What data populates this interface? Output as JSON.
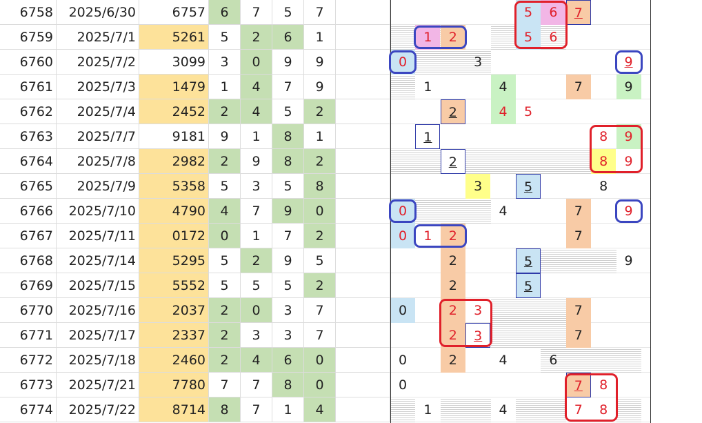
{
  "colors": {
    "yellow": "#fde29a",
    "green": "#c5dfb3",
    "orange": "#f8cba6",
    "lightblue": "#c9e4f4",
    "pink": "#f2b6e6",
    "brightyellow": "#ffff8a",
    "lightgreen": "#c9f2c3",
    "redtext": "#e0202a",
    "ringred": "#e0202a",
    "ringblue": "#3b46c0",
    "boxblue": "#2f3aa8"
  },
  "rows": [
    {
      "id": "6758",
      "date": "2025/6/30",
      "num": "6757",
      "num_hl": false,
      "digits": [
        "6",
        "7",
        "5",
        "7"
      ],
      "dhl": [
        true,
        false,
        false,
        false
      ]
    },
    {
      "id": "6759",
      "date": "2025/7/1",
      "num": "5261",
      "num_hl": true,
      "digits": [
        "5",
        "2",
        "6",
        "1"
      ],
      "dhl": [
        false,
        true,
        true,
        false
      ]
    },
    {
      "id": "6760",
      "date": "2025/7/2",
      "num": "3099",
      "num_hl": false,
      "digits": [
        "3",
        "0",
        "9",
        "9"
      ],
      "dhl": [
        false,
        true,
        false,
        false
      ]
    },
    {
      "id": "6761",
      "date": "2025/7/3",
      "num": "1479",
      "num_hl": true,
      "digits": [
        "1",
        "4",
        "7",
        "9"
      ],
      "dhl": [
        false,
        true,
        false,
        false
      ]
    },
    {
      "id": "6762",
      "date": "2025/7/4",
      "num": "2452",
      "num_hl": true,
      "digits": [
        "2",
        "4",
        "5",
        "2"
      ],
      "dhl": [
        true,
        true,
        false,
        true
      ]
    },
    {
      "id": "6763",
      "date": "2025/7/7",
      "num": "9181",
      "num_hl": false,
      "digits": [
        "9",
        "1",
        "8",
        "1"
      ],
      "dhl": [
        false,
        false,
        true,
        false
      ]
    },
    {
      "id": "6764",
      "date": "2025/7/8",
      "num": "2982",
      "num_hl": true,
      "digits": [
        "2",
        "9",
        "8",
        "2"
      ],
      "dhl": [
        true,
        false,
        true,
        true
      ]
    },
    {
      "id": "6765",
      "date": "2025/7/9",
      "num": "5358",
      "num_hl": true,
      "digits": [
        "5",
        "3",
        "5",
        "8"
      ],
      "dhl": [
        false,
        false,
        false,
        true
      ]
    },
    {
      "id": "6766",
      "date": "2025/7/10",
      "num": "4790",
      "num_hl": true,
      "digits": [
        "4",
        "7",
        "9",
        "0"
      ],
      "dhl": [
        true,
        false,
        true,
        true
      ]
    },
    {
      "id": "6767",
      "date": "2025/7/11",
      "num": "0172",
      "num_hl": true,
      "digits": [
        "0",
        "1",
        "7",
        "2"
      ],
      "dhl": [
        true,
        false,
        false,
        true
      ]
    },
    {
      "id": "6768",
      "date": "2025/7/14",
      "num": "5295",
      "num_hl": true,
      "digits": [
        "5",
        "2",
        "9",
        "5"
      ],
      "dhl": [
        false,
        true,
        false,
        false
      ]
    },
    {
      "id": "6769",
      "date": "2025/7/15",
      "num": "5552",
      "num_hl": true,
      "digits": [
        "5",
        "5",
        "5",
        "2"
      ],
      "dhl": [
        false,
        false,
        false,
        true
      ]
    },
    {
      "id": "6770",
      "date": "2025/7/16",
      "num": "2037",
      "num_hl": true,
      "digits": [
        "2",
        "0",
        "3",
        "7"
      ],
      "dhl": [
        true,
        true,
        false,
        false
      ]
    },
    {
      "id": "6771",
      "date": "2025/7/17",
      "num": "2337",
      "num_hl": true,
      "digits": [
        "2",
        "3",
        "3",
        "7"
      ],
      "dhl": [
        true,
        false,
        false,
        false
      ]
    },
    {
      "id": "6772",
      "date": "2025/7/18",
      "num": "2460",
      "num_hl": true,
      "digits": [
        "2",
        "4",
        "6",
        "0"
      ],
      "dhl": [
        true,
        true,
        true,
        true
      ]
    },
    {
      "id": "6773",
      "date": "2025/7/21",
      "num": "7780",
      "num_hl": true,
      "digits": [
        "7",
        "7",
        "8",
        "0"
      ],
      "dhl": [
        false,
        false,
        true,
        true
      ]
    },
    {
      "id": "6774",
      "date": "2025/7/22",
      "num": "8714",
      "num_hl": true,
      "digits": [
        "8",
        "7",
        "1",
        "4"
      ],
      "dhl": [
        true,
        false,
        false,
        true
      ]
    }
  ],
  "panel": [
    {
      "stripe": [],
      "cells": [
        {
          "c": 5,
          "t": "5",
          "bg": "lightblue",
          "red": true
        },
        {
          "c": 6,
          "t": "6",
          "bg": "pink",
          "red": true
        },
        {
          "c": 7,
          "t": "7",
          "bg": "orange",
          "red": true,
          "u": true,
          "box": true
        }
      ]
    },
    {
      "stripe": [
        0,
        1,
        4,
        5,
        6
      ],
      "cells": [
        {
          "c": 1,
          "t": "1",
          "bg": "pink",
          "red": true
        },
        {
          "c": 2,
          "t": "2",
          "bg": "orange",
          "red": true
        },
        {
          "c": 5,
          "t": "5",
          "bg": "lightblue",
          "red": true
        },
        {
          "c": 6,
          "t": "6",
          "red": true
        }
      ]
    },
    {
      "stripe": [
        1,
        2,
        3
      ],
      "cells": [
        {
          "c": 0,
          "t": "0",
          "bg": "lightblue",
          "red": true
        },
        {
          "c": 3,
          "t": "3"
        },
        {
          "c": 9,
          "t": "9",
          "red": true,
          "u": true
        }
      ]
    },
    {
      "stripe": [
        0
      ],
      "cells": [
        {
          "c": 1,
          "t": "1"
        },
        {
          "c": 4,
          "t": "4",
          "bg": "lightgreen"
        },
        {
          "c": 7,
          "t": "7",
          "bg": "orange"
        },
        {
          "c": 9,
          "t": "9",
          "bg": "lightgreen"
        }
      ]
    },
    {
      "stripe": [],
      "cells": [
        {
          "c": 2,
          "t": "2",
          "bg": "orange",
          "u": true,
          "box": true
        },
        {
          "c": 4,
          "t": "4",
          "bg": "lightgreen",
          "red": true
        },
        {
          "c": 5,
          "t": "5",
          "red": true
        }
      ]
    },
    {
      "stripe": [],
      "cells": [
        {
          "c": 1,
          "t": "1",
          "u": true,
          "box": true
        },
        {
          "c": 8,
          "t": "8",
          "red": true
        },
        {
          "c": 9,
          "t": "9",
          "bg": "lightgreen",
          "red": true
        }
      ]
    },
    {
      "stripe": [
        0,
        1,
        3,
        4,
        5,
        6,
        7
      ],
      "cells": [
        {
          "c": 2,
          "t": "2",
          "u": true,
          "box": true
        },
        {
          "c": 8,
          "t": "8",
          "bg": "brightyellow",
          "red": true
        },
        {
          "c": 9,
          "t": "9",
          "red": true
        }
      ]
    },
    {
      "stripe": [],
      "cells": [
        {
          "c": 3,
          "t": "3",
          "bg": "brightyellow"
        },
        {
          "c": 5,
          "t": "5",
          "bg": "lightblue",
          "u": true,
          "box": true
        },
        {
          "c": 8,
          "t": "8"
        }
      ]
    },
    {
      "stripe": [
        1,
        2,
        3
      ],
      "cells": [
        {
          "c": 0,
          "t": "0",
          "bg": "lightblue",
          "red": true
        },
        {
          "c": 4,
          "t": "4"
        },
        {
          "c": 7,
          "t": "7",
          "bg": "orange"
        },
        {
          "c": 9,
          "t": "9",
          "red": true
        }
      ]
    },
    {
      "stripe": [],
      "cells": [
        {
          "c": 0,
          "t": "0",
          "bg": "lightblue",
          "red": true
        },
        {
          "c": 1,
          "t": "1",
          "red": true
        },
        {
          "c": 2,
          "t": "2",
          "bg": "orange",
          "red": true
        },
        {
          "c": 7,
          "t": "7",
          "bg": "orange"
        }
      ]
    },
    {
      "stripe": [
        6,
        7,
        8
      ],
      "cells": [
        {
          "c": 2,
          "t": "2",
          "bg": "orange"
        },
        {
          "c": 5,
          "t": "5",
          "bg": "lightblue",
          "u": true,
          "box": true
        },
        {
          "c": 9,
          "t": "9"
        }
      ]
    },
    {
      "stripe": [],
      "cells": [
        {
          "c": 2,
          "t": "2",
          "bg": "orange"
        },
        {
          "c": 5,
          "t": "5",
          "bg": "lightblue",
          "u": true,
          "box": true
        }
      ]
    },
    {
      "stripe": [
        4,
        5,
        6
      ],
      "cells": [
        {
          "c": 0,
          "t": "0",
          "bg": "lightblue"
        },
        {
          "c": 2,
          "t": "2",
          "bg": "orange",
          "red": true
        },
        {
          "c": 3,
          "t": "3",
          "red": true
        },
        {
          "c": 7,
          "t": "7",
          "bg": "orange"
        }
      ]
    },
    {
      "stripe": [
        4,
        5,
        6
      ],
      "cells": [
        {
          "c": 2,
          "t": "2",
          "bg": "orange",
          "red": true
        },
        {
          "c": 3,
          "t": "3",
          "red": true,
          "u": true,
          "box": true
        },
        {
          "c": 7,
          "t": "7",
          "bg": "orange"
        }
      ]
    },
    {
      "stripe": [
        6,
        7,
        8,
        9
      ],
      "cells": [
        {
          "c": 0,
          "t": "0"
        },
        {
          "c": 2,
          "t": "2",
          "bg": "orange"
        },
        {
          "c": 4,
          "t": "4"
        },
        {
          "c": 6,
          "t": "6"
        }
      ]
    },
    {
      "stripe": [],
      "cells": [
        {
          "c": 0,
          "t": "0"
        },
        {
          "c": 7,
          "t": "7",
          "bg": "orange",
          "red": true,
          "u": true,
          "box": true
        },
        {
          "c": 8,
          "t": "8",
          "red": true
        }
      ]
    },
    {
      "stripe": [
        0,
        2,
        3,
        5,
        6,
        9
      ],
      "cells": [
        {
          "c": 1,
          "t": "1"
        },
        {
          "c": 4,
          "t": "4"
        },
        {
          "c": 7,
          "t": "7",
          "red": true
        },
        {
          "c": 8,
          "t": "8",
          "red": true
        }
      ]
    }
  ],
  "rings": [
    {
      "color": "red",
      "r": 0,
      "c": 5,
      "rows": 2,
      "cols": 2
    },
    {
      "color": "blue",
      "r": 1,
      "c": 1,
      "rows": 1,
      "cols": 2
    },
    {
      "color": "blue",
      "r": 2,
      "c": 0,
      "rows": 1,
      "cols": 1
    },
    {
      "color": "blue",
      "r": 2,
      "c": 9,
      "rows": 1,
      "cols": 1
    },
    {
      "color": "red",
      "r": 5,
      "c": 8,
      "rows": 2,
      "cols": 2
    },
    {
      "color": "blue",
      "r": 8,
      "c": 0,
      "rows": 1,
      "cols": 1
    },
    {
      "color": "blue",
      "r": 8,
      "c": 9,
      "rows": 1,
      "cols": 1
    },
    {
      "color": "blue",
      "r": 9,
      "c": 1,
      "rows": 1,
      "cols": 2
    },
    {
      "color": "red",
      "r": 12,
      "c": 2,
      "rows": 2,
      "cols": 2
    },
    {
      "color": "red",
      "r": 15,
      "c": 7,
      "rows": 2,
      "cols": 2
    }
  ]
}
